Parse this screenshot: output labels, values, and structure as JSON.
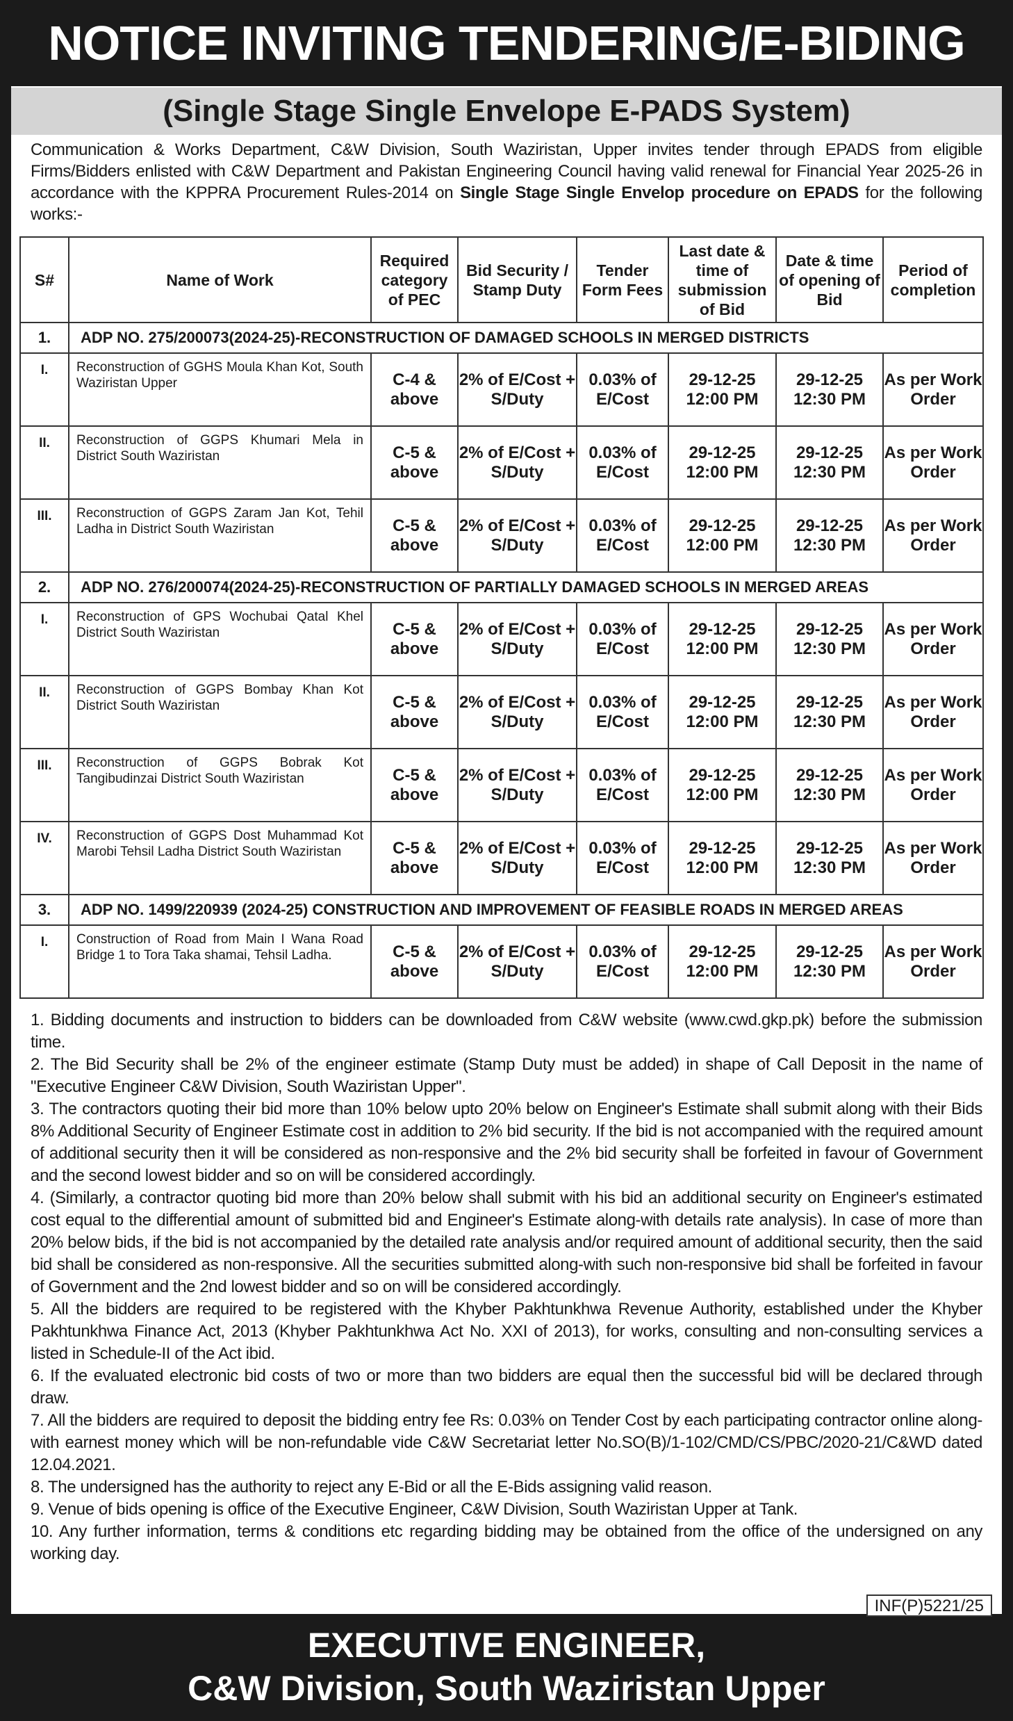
{
  "title": "NOTICE INVITING TENDERING/E-BIDING",
  "subtitle": "(Single Stage Single Envelope E-PADS System)",
  "intro": {
    "text": "Communication & Works Department, C&W Division, South Waziristan, Upper invites tender through EPADS from eligible Firms/Bidders enlisted with C&W Department and Pakistan Engineering Council having valid renewal for Financial Year 2025-26 in accordance with the KPPRA Procurement Rules-2014 on ",
    "bold": "Single Stage Single Envelop procedure on EPADS",
    "tail": " for the following works:-"
  },
  "table": {
    "headers": [
      "S#",
      "Name of Work",
      "Required category of PEC",
      "Bid Security / Stamp Duty",
      "Tender Form Fees",
      "Last date & time of submission of Bid",
      "Date & time of opening of Bid",
      "Period of completion"
    ],
    "sections": [
      {
        "no": "1.",
        "title": "ADP NO. 275/200073(2024-25)-RECONSTRUCTION OF DAMAGED SCHOOLS IN MERGED DISTRICTS",
        "rows": [
          {
            "sn": "I.",
            "name": "Reconstruction of GGHS Moula Khan Kot, South Waziristan Upper",
            "pec": "C-4 & above"
          },
          {
            "sn": "II.",
            "name": "Reconstruction of GGPS Khumari Mela in District South Waziristan",
            "pec": "C-5 & above"
          },
          {
            "sn": "III.",
            "name": "Reconstruction of GGPS Zaram Jan Kot, Tehil Ladha in District South Waziristan",
            "pec": "C-5 & above"
          }
        ]
      },
      {
        "no": "2.",
        "title": "ADP NO. 276/200074(2024-25)-RECONSTRUCTION OF PARTIALLY DAMAGED SCHOOLS IN MERGED AREAS",
        "rows": [
          {
            "sn": "I.",
            "name": "Reconstruction of GPS Wochubai Qatal Khel District South Waziristan",
            "pec": "C-5 & above"
          },
          {
            "sn": "II.",
            "name": "Reconstruction of GGPS Bombay Khan Kot District South Waziristan",
            "pec": "C-5 & above"
          },
          {
            "sn": "III.",
            "name": "Reconstruction of GGPS Bobrak Kot Tangibudinzai District South Waziristan",
            "pec": "C-5 & above"
          },
          {
            "sn": "IV.",
            "name": "Reconstruction of GGPS Dost Muhammad Kot Marobi Tehsil Ladha District South Waziristan",
            "pec": "C-5 & above"
          }
        ]
      },
      {
        "no": "3.",
        "title": "ADP NO. 1499/220939 (2024-25) CONSTRUCTION AND IMPROVEMENT OF FEASIBLE ROADS IN MERGED AREAS",
        "rows": [
          {
            "sn": "I.",
            "name": "Construction of Road from Main I Wana Road Bridge 1 to Tora Taka shamai, Tehsil Ladha.",
            "pec": "C-5 & above"
          }
        ]
      }
    ],
    "common": {
      "bid_security": "2% of E/Cost + S/Duty",
      "fees": "0.03% of E/Cost",
      "last_date": "29-12-25",
      "last_time": "12:00 PM",
      "open_date": "29-12-25",
      "open_time": "12:30 PM",
      "period": "As per Work Order"
    }
  },
  "notes": [
    "1. Bidding documents and instruction to bidders can be downloaded from C&W website (www.cwd.gkp.pk) before the submission time.",
    "2. The Bid Security shall be 2% of the engineer estimate (Stamp Duty must be added) in shape of Call Deposit in the name of \"Executive Engineer C&W Division, South Waziristan Upper\".",
    "3. The contractors quoting their bid more than 10% below upto 20% below on Engineer's Estimate shall submit along with their Bids 8% Additional Security of Engineer Estimate cost in addition to 2% bid security. If the bid is not accompanied with the required amount of additional security then it will be considered as non-responsive and the 2% bid security shall be forfeited in favour of Government and the second lowest bidder and so on will be considered accordingly.",
    "4. (Similarly, a contractor quoting bid more than 20% below shall submit with his bid an additional security on Engineer's estimated cost equal to the differential amount of submitted bid and Engineer's Estimate along-with details rate analysis). In case of more than 20% below bids, if the bid is not accompanied by the detailed rate analysis and/or required amount of additional security, then the said bid shall be considered as non-responsive. All the securities submitted along-with such non-responsive bid shall be forfeited in favour of Government and the 2nd lowest bidder and so on will be considered accordingly.",
    "5. All the bidders are required to be registered with the Khyber Pakhtunkhwa Revenue Authority, established under the Khyber Pakhtunkhwa Finance Act, 2013 (Khyber Pakhtunkhwa Act No. XXI of 2013), for works, consulting and non-consulting services a listed in Schedule-II of the Act ibid.",
    "6. If the evaluated electronic bid costs of two or more than two bidders are equal then the successful bid will be declared through draw.",
    "7. All the bidders are required to deposit the bidding entry fee Rs: 0.03% on Tender Cost by each participating contractor online along-with earnest money which will be non-refundable vide C&W Secretariat letter No.SO(B)/1-102/CMD/CS/PBC/2020-21/C&WD dated 12.04.2021.",
    "8. The undersigned has the authority to reject any E-Bid or all the E-Bids assigning valid reason.",
    "9. Venue of bids opening is office of the Executive Engineer, C&W Division, South Waziristan Upper at Tank.",
    "10. Any further information, terms & conditions etc regarding bidding may be obtained from the office of the undersigned on any working day."
  ],
  "ref": "INF(P)5221/25",
  "footer": {
    "line1": "EXECUTIVE ENGINEER,",
    "line2": "C&W Division, South Waziristan Upper"
  }
}
